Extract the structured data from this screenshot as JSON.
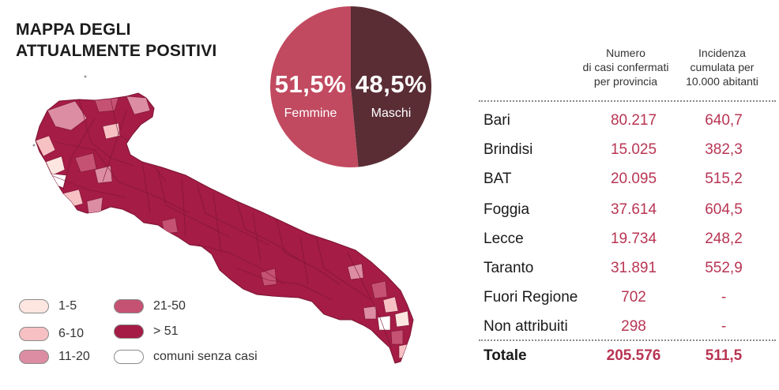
{
  "title": {
    "line1": "MAPPA DEGLI",
    "line2": "ATTUALMENTE POSITIVI"
  },
  "colors": {
    "range_1_5": "#fde6e0",
    "range_6_10": "#f7c1c4",
    "range_11_20": "#dc8da3",
    "range_21_50": "#c55273",
    "range_over_51": "#a51c46",
    "no_cases": "#ffffff",
    "female": "#c14a60",
    "male": "#5a2d35",
    "accent_text": "#b83553"
  },
  "legend": [
    {
      "label": "1-5",
      "color": "#fde6e0"
    },
    {
      "label": "6-10",
      "color": "#f7c1c4"
    },
    {
      "label": "11-20",
      "color": "#dc8da3"
    },
    {
      "label": "21-50",
      "color": "#c55273"
    },
    {
      "label": "> 51",
      "color": "#a51c46"
    },
    {
      "label": "comuni senza casi",
      "color": "#ffffff"
    }
  ],
  "gender": {
    "female": {
      "pct": "51,5%",
      "label": "Femmine",
      "value": 51.5
    },
    "male": {
      "pct": "48,5%",
      "label": "Maschi",
      "value": 48.5
    }
  },
  "table": {
    "col_cases_header": [
      "Numero",
      "di casi confermati",
      "per provincia"
    ],
    "col_incidence_header": [
      "Incidenza",
      "cumulata per",
      "10.000 abitanti"
    ],
    "rows": [
      {
        "name": "Bari",
        "cases": "80.217",
        "incidence": "640,7"
      },
      {
        "name": "Brindisi",
        "cases": "15.025",
        "incidence": "382,3"
      },
      {
        "name": "BAT",
        "cases": "20.095",
        "incidence": "515,2"
      },
      {
        "name": "Foggia",
        "cases": "37.614",
        "incidence": "604,5"
      },
      {
        "name": "Lecce",
        "cases": "19.734",
        "incidence": "248,2"
      },
      {
        "name": "Taranto",
        "cases": "31.891",
        "incidence": "552,9"
      },
      {
        "name": "Fuori Regione",
        "cases": "702",
        "incidence": "-"
      },
      {
        "name": "Non attribuiti",
        "cases": "298",
        "incidence": "-"
      }
    ],
    "total": {
      "name": "Totale",
      "cases": "205.576",
      "incidence": "511,5"
    }
  }
}
